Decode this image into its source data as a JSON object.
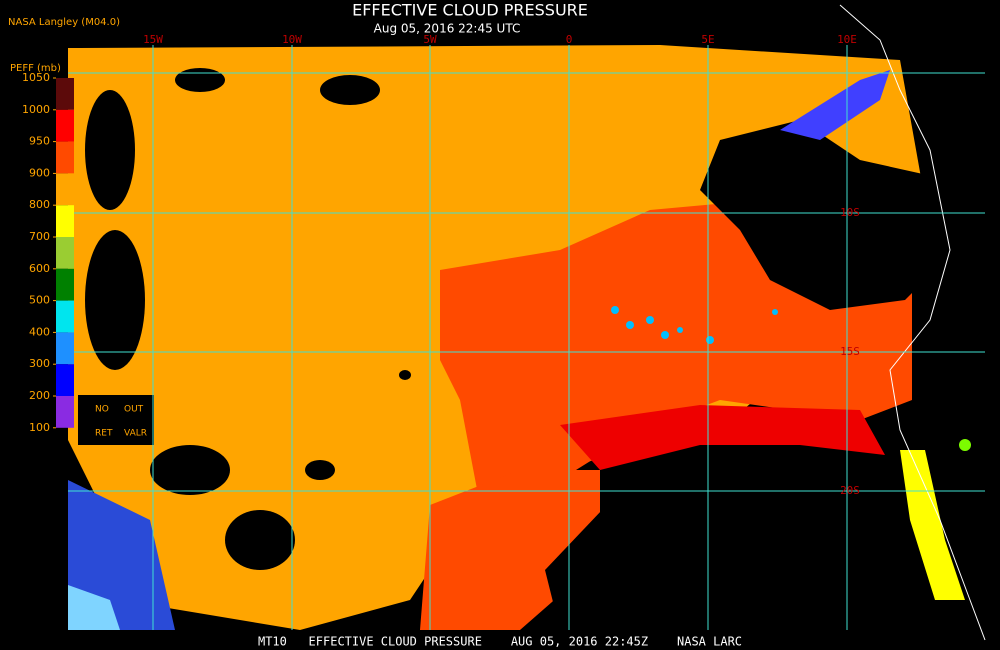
{
  "header": {
    "source": "NASA Langley (M04.0)",
    "title": "EFFECTIVE CLOUD PRESSURE",
    "datetime": "Aug 05, 2016 22:45 UTC"
  },
  "colorbar": {
    "title": "PEFF (mb)",
    "ticks": [
      1050,
      1000,
      950,
      900,
      800,
      700,
      600,
      500,
      400,
      300,
      200,
      100
    ],
    "colors": [
      "#5c0a0a",
      "#ff0000",
      "#ff4a00",
      "#ffa500",
      "#ffff00",
      "#9acd32",
      "#008000",
      "#00e5ee",
      "#1e90ff",
      "#0000ff",
      "#8a2be2"
    ],
    "notes": [
      "NO",
      "OUT",
      "RET",
      "VALR"
    ]
  },
  "map": {
    "lon_labels": [
      "15W",
      "10W",
      "5W",
      "0",
      "5E",
      "10E"
    ],
    "lat_labels": [
      "10S",
      "15S",
      "20S"
    ]
  },
  "footer": "MT10   EFFECTIVE CLOUD PRESSURE    AUG 05, 2016 22:45Z    NASA LARC"
}
